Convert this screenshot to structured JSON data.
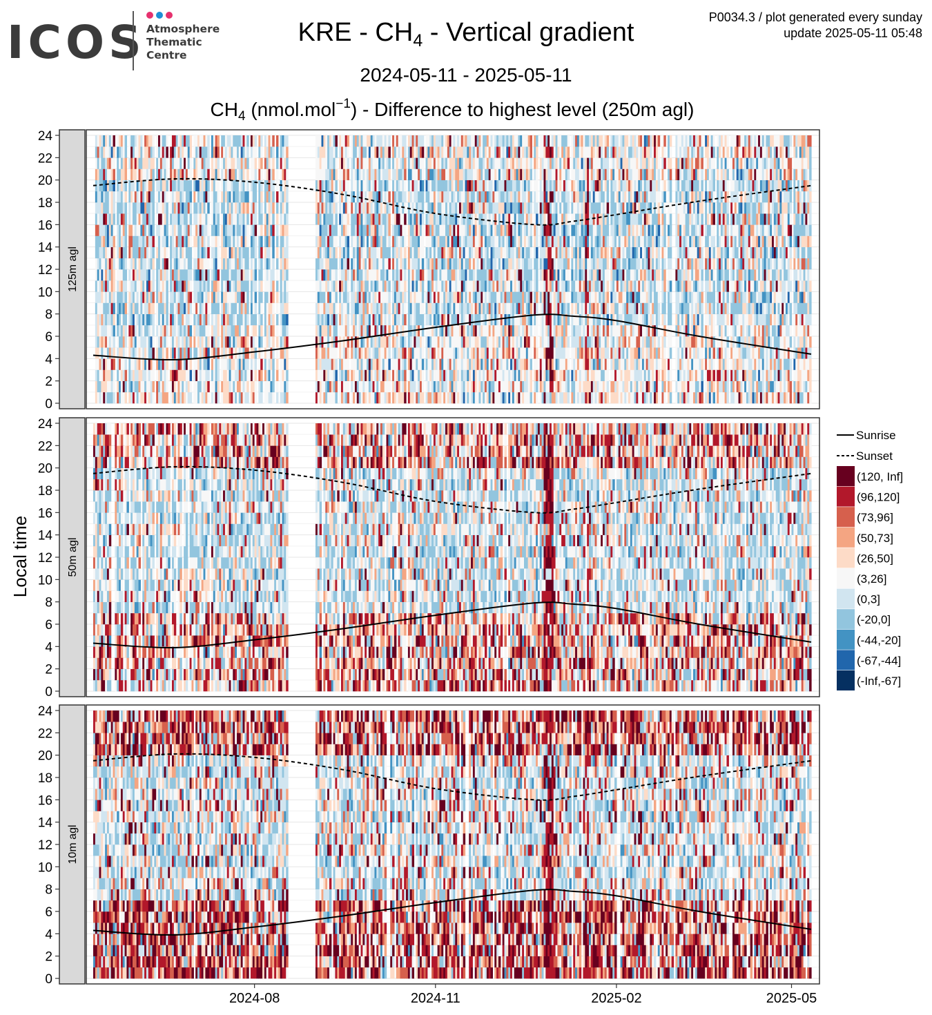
{
  "logo": {
    "wordmark": "ICOS",
    "line1": "Atmosphere",
    "line2": "Thematic",
    "line3": "Centre",
    "dot_colors": [
      "#e6316e",
      "#1e90d6",
      "#e6316e"
    ]
  },
  "header": {
    "title_prefix": "KRE - CH",
    "title_sub": "4",
    "title_suffix": " - Vertical gradient",
    "period": "2024-05-11 - 2025-05-11",
    "subtitle_prefix": "CH",
    "subtitle_sub": "4",
    "subtitle_mid": " (nmol.mol",
    "subtitle_sup": "−1",
    "subtitle_suffix": ") - Difference to highest level (250m agl)",
    "product_line": "P0034.3 / plot generated every sunday",
    "update_line": "update  2025-05-11 05:48"
  },
  "chart_data": {
    "type": "heatmap",
    "ylabel": "Local time",
    "x_range": [
      "2024-05-11",
      "2025-05-11"
    ],
    "ylim": [
      0,
      24
    ],
    "y_ticks": [
      "0",
      "2",
      "4",
      "6",
      "8",
      "10",
      "12",
      "14",
      "16",
      "18",
      "20",
      "22",
      "24"
    ],
    "x_ticks": [
      {
        "date": "2024-08-01",
        "label": "2024-08"
      },
      {
        "date": "2024-11-01",
        "label": "2024-11"
      },
      {
        "date": "2025-02-01",
        "label": "2025-02"
      },
      {
        "date": "2025-05-01",
        "label": "2025-05"
      }
    ],
    "panels": [
      {
        "label": "125m agl"
      },
      {
        "label": "50m agl"
      },
      {
        "label": "10m agl"
      }
    ],
    "legend": {
      "position": "right",
      "lines": [
        {
          "label": "Sunrise",
          "style": "solid"
        },
        {
          "label": "Sunset",
          "style": "dashed"
        }
      ],
      "bins": [
        {
          "label": "(120, Inf]",
          "color": "#67001f"
        },
        {
          "label": "(96,120]",
          "color": "#b2182b"
        },
        {
          "label": "(73,96]",
          "color": "#d6604d"
        },
        {
          "label": "(50,73]",
          "color": "#f4a582"
        },
        {
          "label": "(26,50]",
          "color": "#fddbc7"
        },
        {
          "label": "(3,26]",
          "color": "#f7f7f7"
        },
        {
          "label": "(0,3]",
          "color": "#d1e5f0"
        },
        {
          "label": "(-20,0]",
          "color": "#92c5de"
        },
        {
          "label": "(-44,-20]",
          "color": "#4393c3"
        },
        {
          "label": "(-67,-44]",
          "color": "#2166ac"
        },
        {
          "label": "(-Inf,-67]",
          "color": "#053061"
        }
      ]
    },
    "sunrise": [
      {
        "date": "2024-05-11",
        "hour": 4.3
      },
      {
        "date": "2024-06-21",
        "hour": 3.9
      },
      {
        "date": "2024-08-01",
        "hour": 4.6
      },
      {
        "date": "2024-09-15",
        "hour": 5.6
      },
      {
        "date": "2024-11-01",
        "hour": 6.8
      },
      {
        "date": "2024-12-21",
        "hour": 7.9
      },
      {
        "date": "2025-01-10",
        "hour": 7.8
      },
      {
        "date": "2025-02-01",
        "hour": 7.4
      },
      {
        "date": "2025-03-15",
        "hour": 6.0
      },
      {
        "date": "2025-05-11",
        "hour": 4.4
      }
    ],
    "sunset": [
      {
        "date": "2024-05-11",
        "hour": 19.5
      },
      {
        "date": "2024-06-21",
        "hour": 20.1
      },
      {
        "date": "2024-08-01",
        "hour": 19.8
      },
      {
        "date": "2024-09-15",
        "hour": 18.7
      },
      {
        "date": "2024-11-01",
        "hour": 17.0
      },
      {
        "date": "2024-12-21",
        "hour": 16.0
      },
      {
        "date": "2025-01-10",
        "hour": 16.3
      },
      {
        "date": "2025-02-01",
        "hour": 16.9
      },
      {
        "date": "2025-03-15",
        "hour": 18.1
      },
      {
        "date": "2025-05-11",
        "hour": 19.5
      }
    ],
    "data_gap": [
      "2024-08-18",
      "2024-09-01"
    ]
  }
}
